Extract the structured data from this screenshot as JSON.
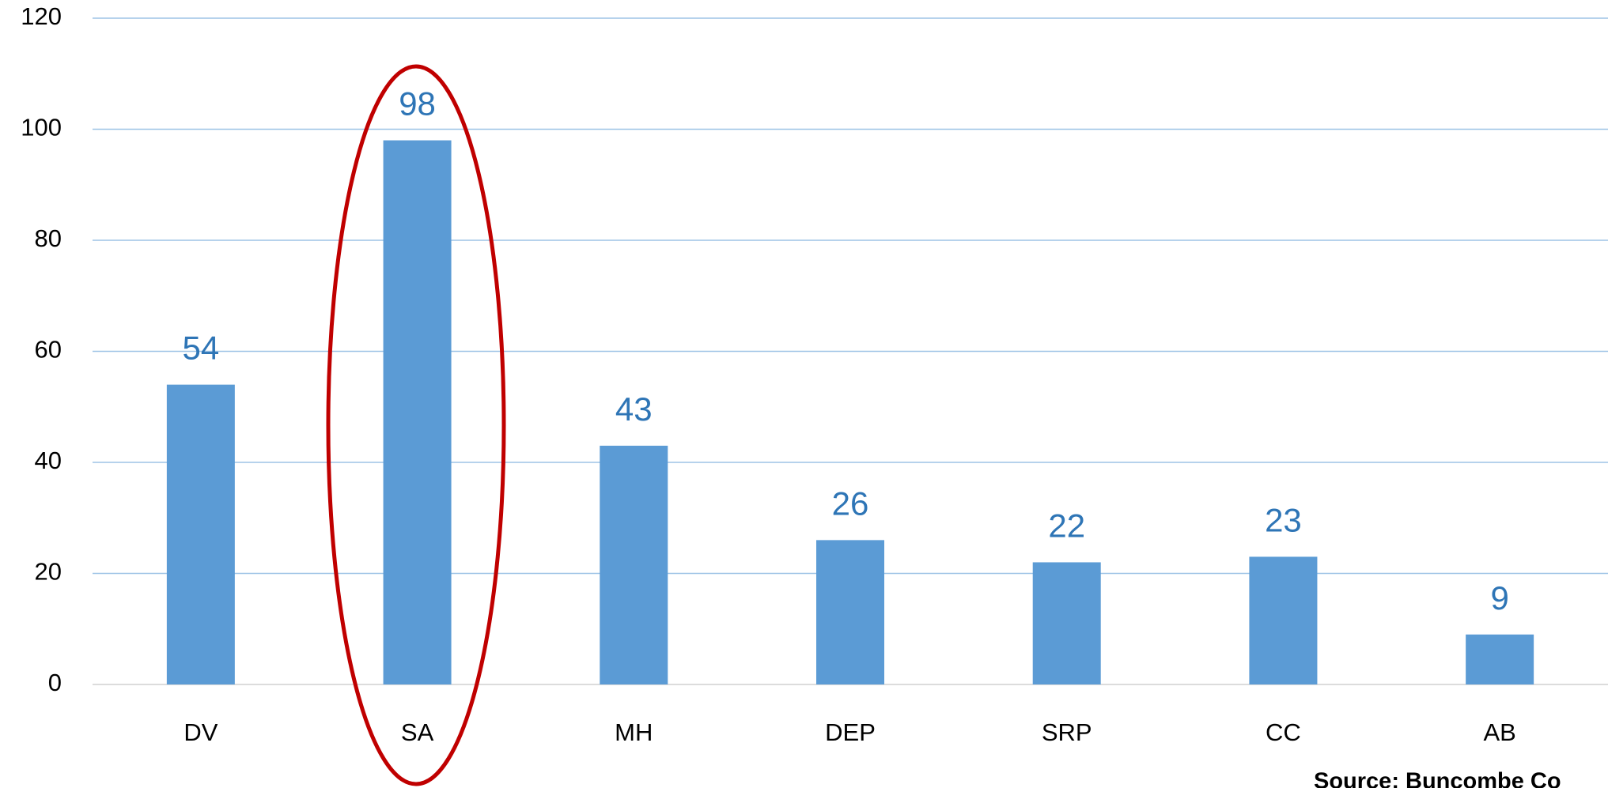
{
  "chart_data": {
    "type": "bar",
    "categories": [
      "DV",
      "SA",
      "MH",
      "DEP",
      "SRP",
      "CC",
      "AB"
    ],
    "values": [
      54,
      98,
      43,
      26,
      22,
      23,
      9
    ],
    "color": "#5b9bd5",
    "ylim": [
      0,
      120
    ],
    "yticks": [
      0,
      20,
      40,
      60,
      80,
      100,
      120
    ],
    "grid": true,
    "source": "Source: Buncombe Co"
  }
}
